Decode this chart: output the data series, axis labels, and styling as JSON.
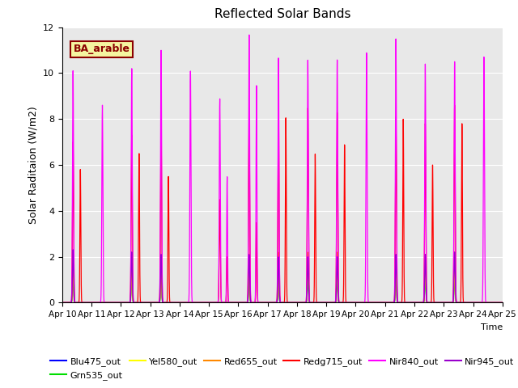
{
  "title": "Reflected Solar Bands",
  "ylabel": "Solar Raditaion (W/m2)",
  "ylim": [
    0,
    12
  ],
  "background_color": "#e8e8e8",
  "annotation_text": "BA_arable",
  "annotation_bg": "#f5f5a0",
  "annotation_fg": "#8b0000",
  "series_colors": {
    "Blu475_out": "#0000ff",
    "Grn535_out": "#00dd00",
    "Yel580_out": "#ffff00",
    "Red655_out": "#ff8800",
    "Redg715_out": "#ff0000",
    "Nir840_out": "#ff00ff",
    "Nir945_out": "#9900cc"
  },
  "series_order": [
    "Blu475_out",
    "Grn535_out",
    "Yel580_out",
    "Red655_out",
    "Redg715_out",
    "Nir840_out",
    "Nir945_out"
  ],
  "tick_labels": [
    "Apr 10",
    "Apr 11",
    "Apr 12",
    "Apr 13",
    "Apr 14",
    "Apr 15",
    "Apr 16",
    "Apr 17",
    "Apr 18",
    "Apr 19",
    "Apr 20",
    "Apr 21",
    "Apr 22",
    "Apr 23",
    "Apr 24",
    "Apr 25"
  ],
  "day_data": {
    "Blu475_out": [
      2.3,
      0.0,
      2.2,
      2.1,
      0.0,
      0.0,
      2.1,
      2.0,
      2.0,
      2.0,
      0.0,
      2.1,
      2.1,
      2.2,
      0.0
    ],
    "Grn535_out": [
      1.0,
      0.0,
      1.0,
      1.0,
      0.0,
      0.0,
      1.0,
      1.0,
      1.0,
      1.0,
      0.0,
      1.0,
      1.0,
      1.0,
      0.0
    ],
    "Yel580_out": [
      1.5,
      0.0,
      1.5,
      1.5,
      0.0,
      0.0,
      1.5,
      1.5,
      1.5,
      1.5,
      0.0,
      1.5,
      1.5,
      1.5,
      0.0
    ],
    "Red655_out": [
      1.9,
      0.0,
      1.8,
      2.0,
      0.0,
      0.0,
      2.1,
      2.2,
      2.2,
      2.2,
      0.0,
      2.1,
      2.1,
      2.2,
      0.0
    ],
    "Redg715_out": [
      7.0,
      0.0,
      7.3,
      7.5,
      0.0,
      4.5,
      8.2,
      8.4,
      8.5,
      8.3,
      0.0,
      8.1,
      7.8,
      8.6,
      0.0
    ],
    "Nir840_out": [
      10.1,
      8.6,
      10.2,
      11.0,
      10.1,
      8.9,
      11.7,
      10.7,
      10.6,
      10.6,
      10.9,
      11.5,
      10.4,
      10.5,
      10.7
    ],
    "Nir945_out": [
      2.3,
      0.0,
      2.2,
      2.1,
      0.0,
      0.0,
      2.1,
      2.0,
      2.0,
      2.0,
      0.0,
      2.1,
      2.1,
      2.2,
      0.0
    ]
  },
  "day_data2": {
    "Blu475_out": [
      0.0,
      0.0,
      0.0,
      0.0,
      0.0,
      0.0,
      0.0,
      0.0,
      0.0,
      0.0,
      0.0,
      0.0,
      0.0,
      0.0,
      0.0
    ],
    "Grn535_out": [
      0.0,
      0.0,
      0.0,
      0.0,
      0.0,
      0.0,
      0.0,
      0.0,
      0.0,
      0.0,
      0.0,
      0.0,
      0.0,
      0.0,
      0.0
    ],
    "Yel580_out": [
      0.0,
      0.0,
      0.0,
      0.0,
      0.0,
      0.0,
      0.0,
      0.0,
      0.0,
      0.0,
      0.0,
      0.0,
      0.0,
      0.0,
      0.0
    ],
    "Red655_out": [
      0.0,
      0.0,
      0.0,
      0.0,
      0.0,
      0.0,
      0.0,
      0.0,
      0.0,
      0.0,
      0.0,
      0.0,
      0.0,
      0.0,
      0.0
    ],
    "Redg715_out": [
      5.8,
      0.0,
      6.5,
      5.5,
      0.0,
      2.0,
      3.5,
      8.1,
      6.5,
      6.9,
      0.0,
      8.0,
      6.0,
      7.8,
      0.0
    ],
    "Nir840_out": [
      0.0,
      0.0,
      0.0,
      0.0,
      0.0,
      5.5,
      9.5,
      0.0,
      0.0,
      0.0,
      0.0,
      0.0,
      0.0,
      0.0,
      0.0
    ],
    "Nir945_out": [
      0.0,
      0.0,
      0.0,
      0.0,
      0.0,
      0.0,
      0.0,
      0.0,
      0.0,
      0.0,
      0.0,
      0.0,
      0.0,
      0.0,
      0.0
    ]
  }
}
